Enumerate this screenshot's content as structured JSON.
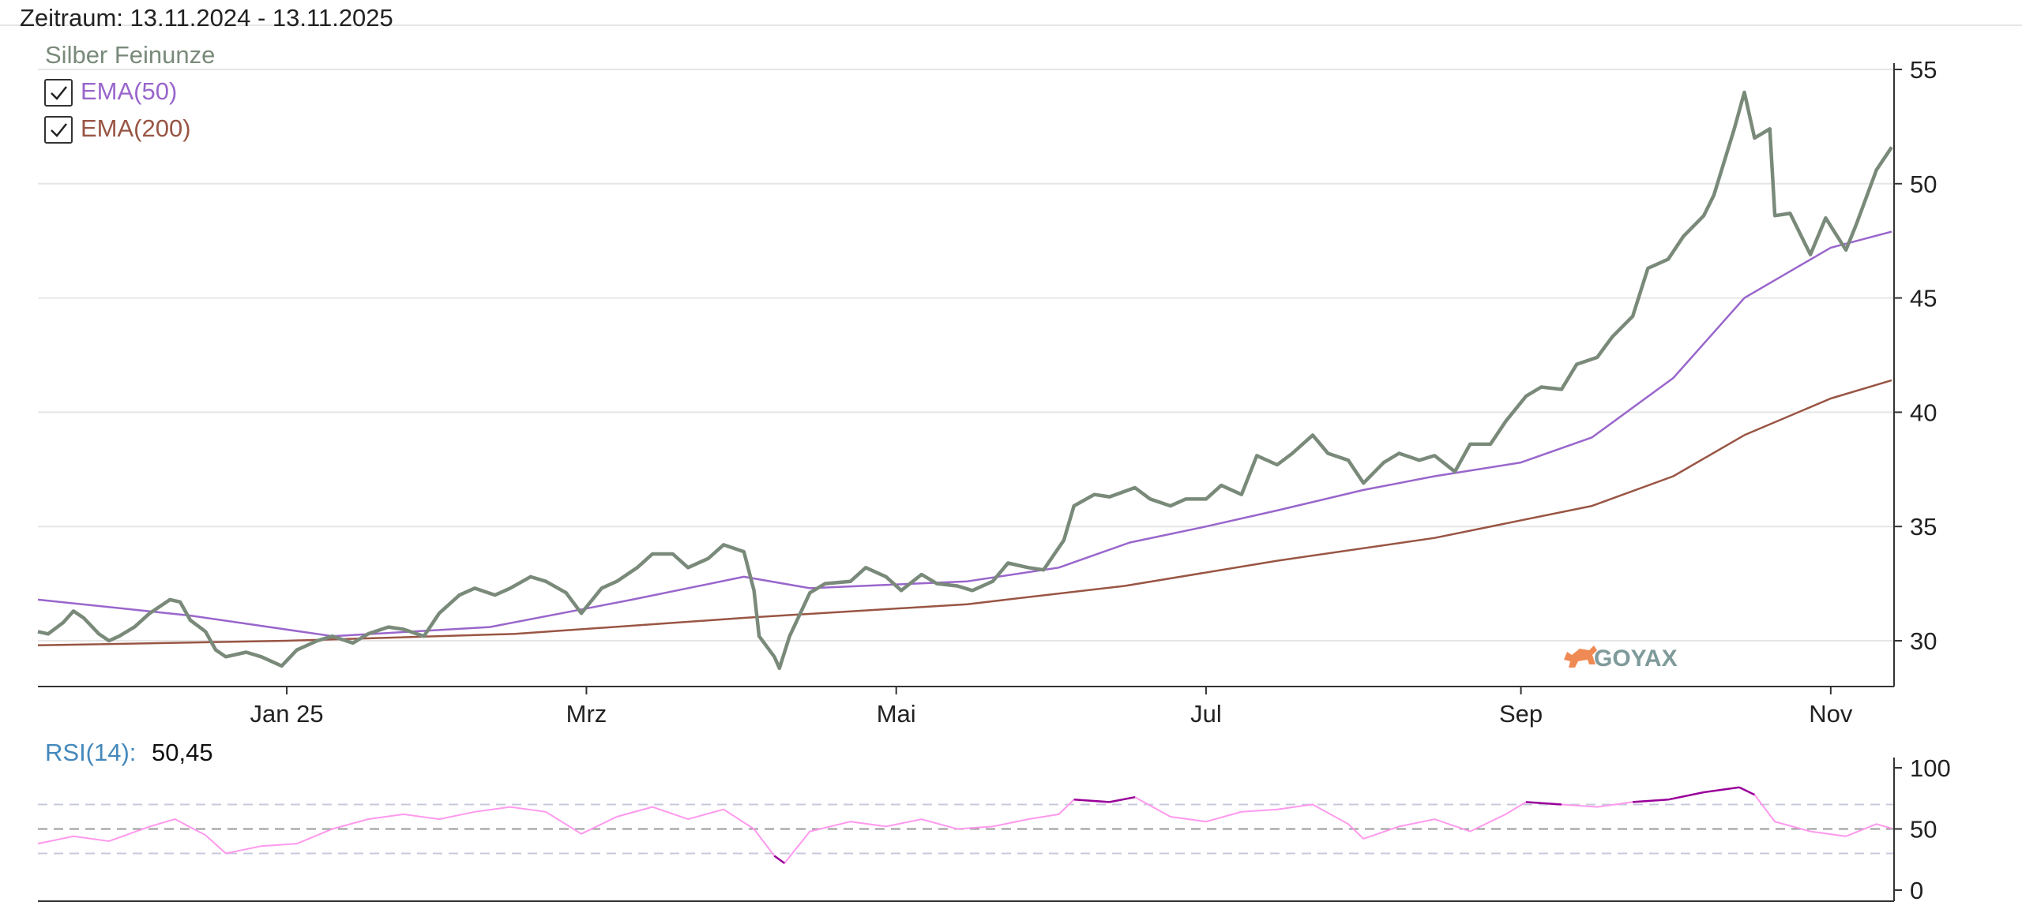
{
  "header": {
    "period": "Zeitraum: 13.11.2024 - 13.11.2025"
  },
  "legend": {
    "main": "Silber Feinunze",
    "ema50": "EMA(50)",
    "ema200": "EMA(200)"
  },
  "watermark": "GOYAX",
  "rsi_panel": {
    "label": "RSI(14):",
    "value": "50,45"
  },
  "colors": {
    "price": "#7a8a7a",
    "ema50": "#9966cc",
    "ema200": "#995544",
    "rsi_label": "#4488bb",
    "rsi_line": "#ff99ee",
    "rsi_extreme": "#990099",
    "grid": "#e6e6e6",
    "axis": "#333333",
    "watermark": "#f08a55"
  },
  "chart_data": [
    {
      "type": "line",
      "x_start": "13.11.2024",
      "x_end": "13.11.2025",
      "xticks": [
        {
          "label": "Jan 25",
          "date": "2025-01-01"
        },
        {
          "label": "Mrz",
          "date": "2025-03-01"
        },
        {
          "label": "Mai",
          "date": "2025-05-01"
        },
        {
          "label": "Jul",
          "date": "2025-07-01"
        },
        {
          "label": "Sep",
          "date": "2025-09-01"
        },
        {
          "label": "Nov",
          "date": "2025-11-01"
        }
      ],
      "yticks": [
        30,
        35,
        40,
        45,
        50,
        55
      ],
      "ylim": [
        28,
        55
      ],
      "grid": true,
      "legend_position": "top-left",
      "series": [
        {
          "name": "Silber Feinunze",
          "points": [
            [
              "2024-11-13",
              30.4
            ],
            [
              "2024-11-15",
              30.3
            ],
            [
              "2024-11-18",
              30.8
            ],
            [
              "2024-11-20",
              31.3
            ],
            [
              "2024-11-22",
              31.0
            ],
            [
              "2024-11-25",
              30.3
            ],
            [
              "2024-11-27",
              30.0
            ],
            [
              "2024-11-29",
              30.2
            ],
            [
              "2024-12-02",
              30.6
            ],
            [
              "2024-12-05",
              31.2
            ],
            [
              "2024-12-09",
              31.8
            ],
            [
              "2024-12-11",
              31.7
            ],
            [
              "2024-12-13",
              30.9
            ],
            [
              "2024-12-16",
              30.4
            ],
            [
              "2024-12-18",
              29.6
            ],
            [
              "2024-12-20",
              29.3
            ],
            [
              "2024-12-24",
              29.5
            ],
            [
              "2024-12-27",
              29.3
            ],
            [
              "2024-12-31",
              28.9
            ],
            [
              "2025-01-03",
              29.6
            ],
            [
              "2025-01-07",
              30.0
            ],
            [
              "2025-01-10",
              30.2
            ],
            [
              "2025-01-14",
              29.9
            ],
            [
              "2025-01-17",
              30.3
            ],
            [
              "2025-01-21",
              30.6
            ],
            [
              "2025-01-24",
              30.5
            ],
            [
              "2025-01-28",
              30.2
            ],
            [
              "2025-01-31",
              31.2
            ],
            [
              "2025-02-04",
              32.0
            ],
            [
              "2025-02-07",
              32.3
            ],
            [
              "2025-02-11",
              32.0
            ],
            [
              "2025-02-14",
              32.3
            ],
            [
              "2025-02-18",
              32.8
            ],
            [
              "2025-02-21",
              32.6
            ],
            [
              "2025-02-25",
              32.1
            ],
            [
              "2025-02-28",
              31.2
            ],
            [
              "2025-03-04",
              32.3
            ],
            [
              "2025-03-07",
              32.6
            ],
            [
              "2025-03-11",
              33.2
            ],
            [
              "2025-03-14",
              33.8
            ],
            [
              "2025-03-18",
              33.8
            ],
            [
              "2025-03-21",
              33.2
            ],
            [
              "2025-03-25",
              33.6
            ],
            [
              "2025-03-28",
              34.2
            ],
            [
              "2025-04-01",
              33.9
            ],
            [
              "2025-04-03",
              32.2
            ],
            [
              "2025-04-04",
              30.2
            ],
            [
              "2025-04-07",
              29.3
            ],
            [
              "2025-04-08",
              28.8
            ],
            [
              "2025-04-10",
              30.2
            ],
            [
              "2025-04-14",
              32.1
            ],
            [
              "2025-04-17",
              32.5
            ],
            [
              "2025-04-22",
              32.6
            ],
            [
              "2025-04-25",
              33.2
            ],
            [
              "2025-04-29",
              32.8
            ],
            [
              "2025-05-02",
              32.2
            ],
            [
              "2025-05-06",
              32.9
            ],
            [
              "2025-05-09",
              32.5
            ],
            [
              "2025-05-13",
              32.4
            ],
            [
              "2025-05-16",
              32.2
            ],
            [
              "2025-05-20",
              32.6
            ],
            [
              "2025-05-23",
              33.4
            ],
            [
              "2025-05-27",
              33.2
            ],
            [
              "2025-05-30",
              33.1
            ],
            [
              "2025-06-03",
              34.4
            ],
            [
              "2025-06-05",
              35.9
            ],
            [
              "2025-06-09",
              36.4
            ],
            [
              "2025-06-12",
              36.3
            ],
            [
              "2025-06-17",
              36.7
            ],
            [
              "2025-06-20",
              36.2
            ],
            [
              "2025-06-24",
              35.9
            ],
            [
              "2025-06-27",
              36.2
            ],
            [
              "2025-07-01",
              36.2
            ],
            [
              "2025-07-04",
              36.8
            ],
            [
              "2025-07-08",
              36.4
            ],
            [
              "2025-07-11",
              38.1
            ],
            [
              "2025-07-15",
              37.7
            ],
            [
              "2025-07-18",
              38.2
            ],
            [
              "2025-07-22",
              39.0
            ],
            [
              "2025-07-25",
              38.2
            ],
            [
              "2025-07-29",
              37.9
            ],
            [
              "2025-08-01",
              36.9
            ],
            [
              "2025-08-05",
              37.8
            ],
            [
              "2025-08-08",
              38.2
            ],
            [
              "2025-08-12",
              37.9
            ],
            [
              "2025-08-15",
              38.1
            ],
            [
              "2025-08-19",
              37.4
            ],
            [
              "2025-08-22",
              38.6
            ],
            [
              "2025-08-26",
              38.6
            ],
            [
              "2025-08-29",
              39.6
            ],
            [
              "2025-09-02",
              40.7
            ],
            [
              "2025-09-05",
              41.1
            ],
            [
              "2025-09-09",
              41.0
            ],
            [
              "2025-09-12",
              42.1
            ],
            [
              "2025-09-16",
              42.4
            ],
            [
              "2025-09-19",
              43.3
            ],
            [
              "2025-09-23",
              44.2
            ],
            [
              "2025-09-26",
              46.3
            ],
            [
              "2025-09-30",
              46.7
            ],
            [
              "2025-10-03",
              47.7
            ],
            [
              "2025-10-07",
              48.6
            ],
            [
              "2025-10-09",
              49.5
            ],
            [
              "2025-10-13",
              52.4
            ],
            [
              "2025-10-15",
              54.0
            ],
            [
              "2025-10-17",
              52.0
            ],
            [
              "2025-10-20",
              52.4
            ],
            [
              "2025-10-21",
              48.6
            ],
            [
              "2025-10-24",
              48.7
            ],
            [
              "2025-10-28",
              46.9
            ],
            [
              "2025-10-31",
              48.5
            ],
            [
              "2025-11-04",
              47.1
            ],
            [
              "2025-11-06",
              48.2
            ],
            [
              "2025-11-10",
              50.6
            ],
            [
              "2025-11-13",
              51.6
            ]
          ]
        },
        {
          "name": "EMA(50)",
          "points": [
            [
              "2024-11-13",
              31.8
            ],
            [
              "2024-12-13",
              31.1
            ],
            [
              "2025-01-10",
              30.2
            ],
            [
              "2025-02-10",
              30.6
            ],
            [
              "2025-03-10",
              31.8
            ],
            [
              "2025-04-01",
              32.8
            ],
            [
              "2025-04-14",
              32.3
            ],
            [
              "2025-05-15",
              32.6
            ],
            [
              "2025-06-02",
              33.2
            ],
            [
              "2025-06-16",
              34.3
            ],
            [
              "2025-07-01",
              35.0
            ],
            [
              "2025-07-15",
              35.7
            ],
            [
              "2025-08-01",
              36.6
            ],
            [
              "2025-08-15",
              37.2
            ],
            [
              "2025-09-01",
              37.8
            ],
            [
              "2025-09-15",
              38.9
            ],
            [
              "2025-10-01",
              41.5
            ],
            [
              "2025-10-15",
              45.0
            ],
            [
              "2025-11-01",
              47.2
            ],
            [
              "2025-11-13",
              47.9
            ]
          ]
        },
        {
          "name": "EMA(200)",
          "points": [
            [
              "2024-11-13",
              29.8
            ],
            [
              "2025-01-01",
              30.0
            ],
            [
              "2025-02-15",
              30.3
            ],
            [
              "2025-04-01",
              31.0
            ],
            [
              "2025-05-15",
              31.6
            ],
            [
              "2025-06-15",
              32.4
            ],
            [
              "2025-07-15",
              33.5
            ],
            [
              "2025-08-15",
              34.5
            ],
            [
              "2025-09-15",
              35.9
            ],
            [
              "2025-10-01",
              37.2
            ],
            [
              "2025-10-15",
              39.0
            ],
            [
              "2025-11-01",
              40.6
            ],
            [
              "2025-11-13",
              41.4
            ]
          ]
        }
      ]
    },
    {
      "type": "line",
      "title": "RSI(14):",
      "current_value": 50.45,
      "yticks": [
        0,
        50,
        100
      ],
      "ylim": [
        0,
        100
      ],
      "reference_lines": [
        30,
        50,
        70
      ],
      "overbought": 70,
      "oversold": 30,
      "series": [
        {
          "name": "RSI(14)",
          "points": [
            [
              "2024-11-13",
              38
            ],
            [
              "2024-11-20",
              44
            ],
            [
              "2024-11-27",
              40
            ],
            [
              "2024-12-05",
              52
            ],
            [
              "2024-12-10",
              58
            ],
            [
              "2024-12-16",
              45
            ],
            [
              "2024-12-20",
              30
            ],
            [
              "2024-12-27",
              36
            ],
            [
              "2025-01-03",
              38
            ],
            [
              "2025-01-10",
              50
            ],
            [
              "2025-01-17",
              58
            ],
            [
              "2025-01-24",
              62
            ],
            [
              "2025-01-31",
              58
            ],
            [
              "2025-02-07",
              64
            ],
            [
              "2025-02-14",
              68
            ],
            [
              "2025-02-21",
              64
            ],
            [
              "2025-02-28",
              46
            ],
            [
              "2025-03-07",
              60
            ],
            [
              "2025-03-14",
              68
            ],
            [
              "2025-03-21",
              58
            ],
            [
              "2025-03-28",
              66
            ],
            [
              "2025-04-03",
              50
            ],
            [
              "2025-04-07",
              28
            ],
            [
              "2025-04-09",
              22
            ],
            [
              "2025-04-14",
              48
            ],
            [
              "2025-04-22",
              56
            ],
            [
              "2025-04-29",
              52
            ],
            [
              "2025-05-06",
              58
            ],
            [
              "2025-05-13",
              50
            ],
            [
              "2025-05-20",
              52
            ],
            [
              "2025-05-27",
              58
            ],
            [
              "2025-06-02",
              62
            ],
            [
              "2025-06-05",
              74
            ],
            [
              "2025-06-12",
              72
            ],
            [
              "2025-06-17",
              76
            ],
            [
              "2025-06-24",
              60
            ],
            [
              "2025-07-01",
              56
            ],
            [
              "2025-07-08",
              64
            ],
            [
              "2025-07-15",
              66
            ],
            [
              "2025-07-22",
              70
            ],
            [
              "2025-07-29",
              54
            ],
            [
              "2025-08-01",
              42
            ],
            [
              "2025-08-08",
              52
            ],
            [
              "2025-08-15",
              58
            ],
            [
              "2025-08-22",
              48
            ],
            [
              "2025-08-29",
              62
            ],
            [
              "2025-09-02",
              72
            ],
            [
              "2025-09-09",
              70
            ],
            [
              "2025-09-16",
              68
            ],
            [
              "2025-09-23",
              72
            ],
            [
              "2025-09-30",
              74
            ],
            [
              "2025-10-07",
              80
            ],
            [
              "2025-10-14",
              84
            ],
            [
              "2025-10-17",
              78
            ],
            [
              "2025-10-21",
              56
            ],
            [
              "2025-10-28",
              48
            ],
            [
              "2025-11-04",
              44
            ],
            [
              "2025-11-10",
              54
            ],
            [
              "2025-11-13",
              50.45
            ]
          ]
        }
      ]
    }
  ]
}
